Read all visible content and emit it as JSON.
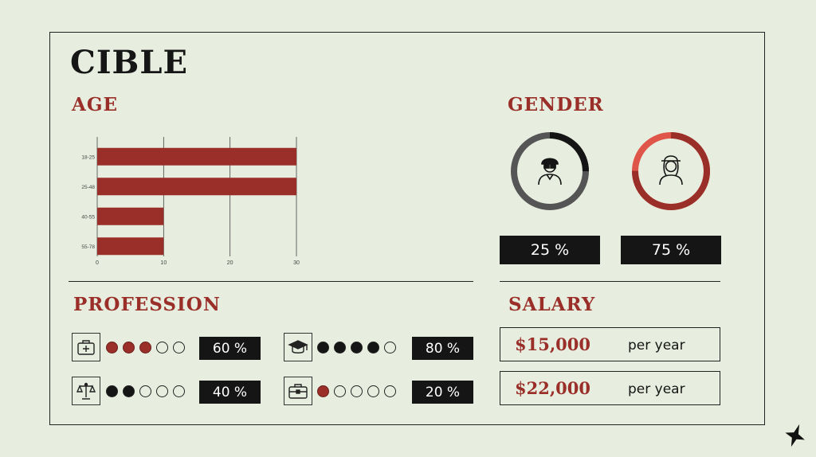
{
  "title": "CIBLE",
  "age": {
    "heading": "AGE"
  },
  "chart_data": {
    "type": "bar",
    "orientation": "horizontal",
    "categories": [
      "18-25",
      "25-48",
      "40-55",
      "55-78"
    ],
    "values": [
      30,
      30,
      10,
      10
    ],
    "xlim": [
      0,
      30
    ],
    "xticks": [
      "0",
      "10",
      "20",
      "30"
    ],
    "grid": true,
    "bar_color": "#9a2f2a"
  },
  "gender": {
    "heading": "GENDER",
    "items": [
      {
        "icon": "man-icon",
        "percent_label": "25 %",
        "percent": 25,
        "ring_color": "#151515",
        "track_color": "#555555"
      },
      {
        "icon": "woman-icon",
        "percent_label": "75 %",
        "percent": 75,
        "ring_color": "#9a2f2a",
        "track_color": "#e0554a"
      }
    ]
  },
  "profession": {
    "heading": "PROFESSION",
    "items": [
      {
        "icon": "medical-kit-icon",
        "filled": 3,
        "total": 5,
        "dot_color": "red",
        "percent_label": "60 %"
      },
      {
        "icon": "graduation-cap-icon",
        "filled": 4,
        "total": 5,
        "dot_color": "black",
        "percent_label": "80 %"
      },
      {
        "icon": "scales-icon",
        "filled": 2,
        "total": 5,
        "dot_color": "black",
        "percent_label": "40 %"
      },
      {
        "icon": "briefcase-icon",
        "filled": 1,
        "total": 5,
        "dot_color": "red",
        "percent_label": "20 %"
      }
    ]
  },
  "salary": {
    "heading": "SALARY",
    "items": [
      {
        "amount": "$15,000",
        "period": "per year"
      },
      {
        "amount": "$22,000",
        "period": "per year"
      }
    ]
  },
  "colors": {
    "background": "#e8eedf",
    "accent": "#9a2f2a",
    "dark": "#151515"
  },
  "logo_icon": "four-point-star-icon"
}
